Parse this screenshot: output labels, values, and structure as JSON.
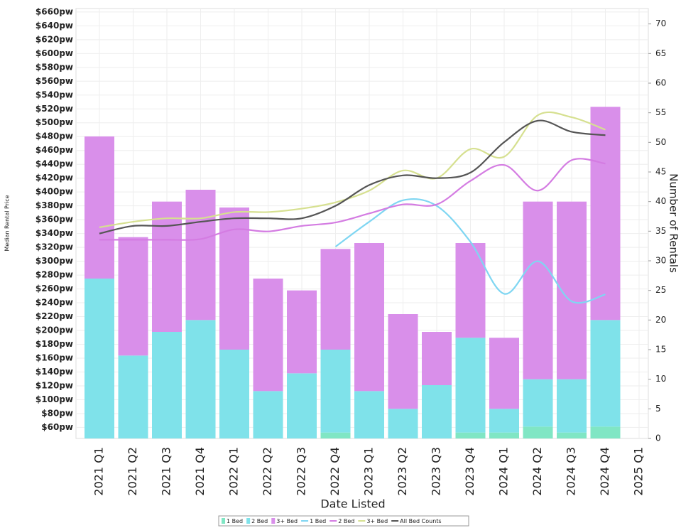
{
  "chart_data": {
    "type": "bar",
    "x_label": "Date Listed",
    "y_label": "Median Rental Price",
    "y2_label": "Number of Rentals",
    "categories": [
      "2021 Q1",
      "2021 Q2",
      "2021 Q3",
      "2021 Q4",
      "2022 Q1",
      "2022 Q2",
      "2022 Q3",
      "2022 Q4",
      "2023 Q1",
      "2023 Q2",
      "2023 Q3",
      "2023 Q4",
      "2024 Q1",
      "2024 Q2",
      "2024 Q3",
      "2024 Q4",
      "2025 Q1"
    ],
    "ylim": [
      44,
      665
    ],
    "yticks": [
      {
        "value": 60,
        "label": "$60pw"
      },
      {
        "value": 80,
        "label": "$80pw"
      },
      {
        "value": 100,
        "label": "$100pw"
      },
      {
        "value": 120,
        "label": "$120pw"
      },
      {
        "value": 140,
        "label": "$140pw"
      },
      {
        "value": 160,
        "label": "$160pw"
      },
      {
        "value": 180,
        "label": "$180pw"
      },
      {
        "value": 200,
        "label": "$200pw"
      },
      {
        "value": 220,
        "label": "$220pw"
      },
      {
        "value": 240,
        "label": "$240pw"
      },
      {
        "value": 260,
        "label": "$260pw"
      },
      {
        "value": 280,
        "label": "$280pw"
      },
      {
        "value": 300,
        "label": "$300pw"
      },
      {
        "value": 320,
        "label": "$320pw"
      },
      {
        "value": 340,
        "label": "$340pw"
      },
      {
        "value": 360,
        "label": "$360pw"
      },
      {
        "value": 380,
        "label": "$380pw"
      },
      {
        "value": 400,
        "label": "$400pw"
      },
      {
        "value": 420,
        "label": "$420pw"
      },
      {
        "value": 440,
        "label": "$440pw"
      },
      {
        "value": 460,
        "label": "$460pw"
      },
      {
        "value": 480,
        "label": "$480pw"
      },
      {
        "value": 500,
        "label": "$500pw"
      },
      {
        "value": 520,
        "label": "$520pw"
      },
      {
        "value": 540,
        "label": "$540pw"
      },
      {
        "value": 560,
        "label": "$560pw"
      },
      {
        "value": 580,
        "label": "$580pw"
      },
      {
        "value": 600,
        "label": "$600pw"
      },
      {
        "value": 620,
        "label": "$620pw"
      },
      {
        "value": 640,
        "label": "$640pw"
      },
      {
        "value": 660,
        "label": "$660pw"
      }
    ],
    "y2lim": [
      0,
      72.6
    ],
    "y2ticks": [
      0,
      5,
      10,
      15,
      20,
      25,
      30,
      35,
      40,
      45,
      50,
      55,
      60,
      65,
      70
    ],
    "grid": true,
    "series": [
      {
        "name": "1 Bed",
        "type": "bar",
        "axis": "y2",
        "color": "#80e6c4",
        "values": [
          0,
          0,
          0,
          0,
          0,
          0,
          0,
          1,
          0,
          0,
          0,
          1,
          1,
          2,
          1,
          2,
          null
        ]
      },
      {
        "name": "2 Bed",
        "type": "bar",
        "axis": "y2",
        "color": "#7fe2ea",
        "values": [
          27,
          14,
          18,
          20,
          15,
          8,
          11,
          14,
          8,
          5,
          9,
          16,
          4,
          8,
          9,
          18,
          null
        ]
      },
      {
        "name": "3+ Bed",
        "type": "bar",
        "axis": "y2",
        "color": "#d98fea",
        "values": [
          24,
          20,
          22,
          22,
          24,
          19,
          14,
          17,
          25,
          16,
          9,
          16,
          12,
          30,
          30,
          36,
          null
        ]
      },
      {
        "name": "1 Bed",
        "type": "line",
        "color": "#7fd6f2",
        "values": [
          null,
          null,
          null,
          null,
          null,
          null,
          null,
          321,
          357,
          388,
          380,
          328,
          253,
          300,
          242,
          252,
          null
        ]
      },
      {
        "name": "2 Bed",
        "type": "line",
        "color": "#d47ce2",
        "values": [
          331,
          331,
          331,
          332,
          346,
          343,
          351,
          356,
          369,
          382,
          382,
          416,
          439,
          402,
          446,
          441,
          null
        ]
      },
      {
        "name": "3+ Bed",
        "type": "line",
        "color": "#d6e090",
        "values": [
          349,
          357,
          362,
          362,
          371,
          371,
          376,
          385,
          402,
          431,
          420,
          462,
          451,
          511,
          508,
          490,
          null
        ]
      },
      {
        "name": "All Bed Counts",
        "type": "line",
        "color": "#555555",
        "values": [
          340,
          351,
          351,
          357,
          362,
          362,
          362,
          380,
          410,
          424,
          420,
          428,
          472,
          503,
          487,
          482,
          null
        ]
      }
    ]
  }
}
